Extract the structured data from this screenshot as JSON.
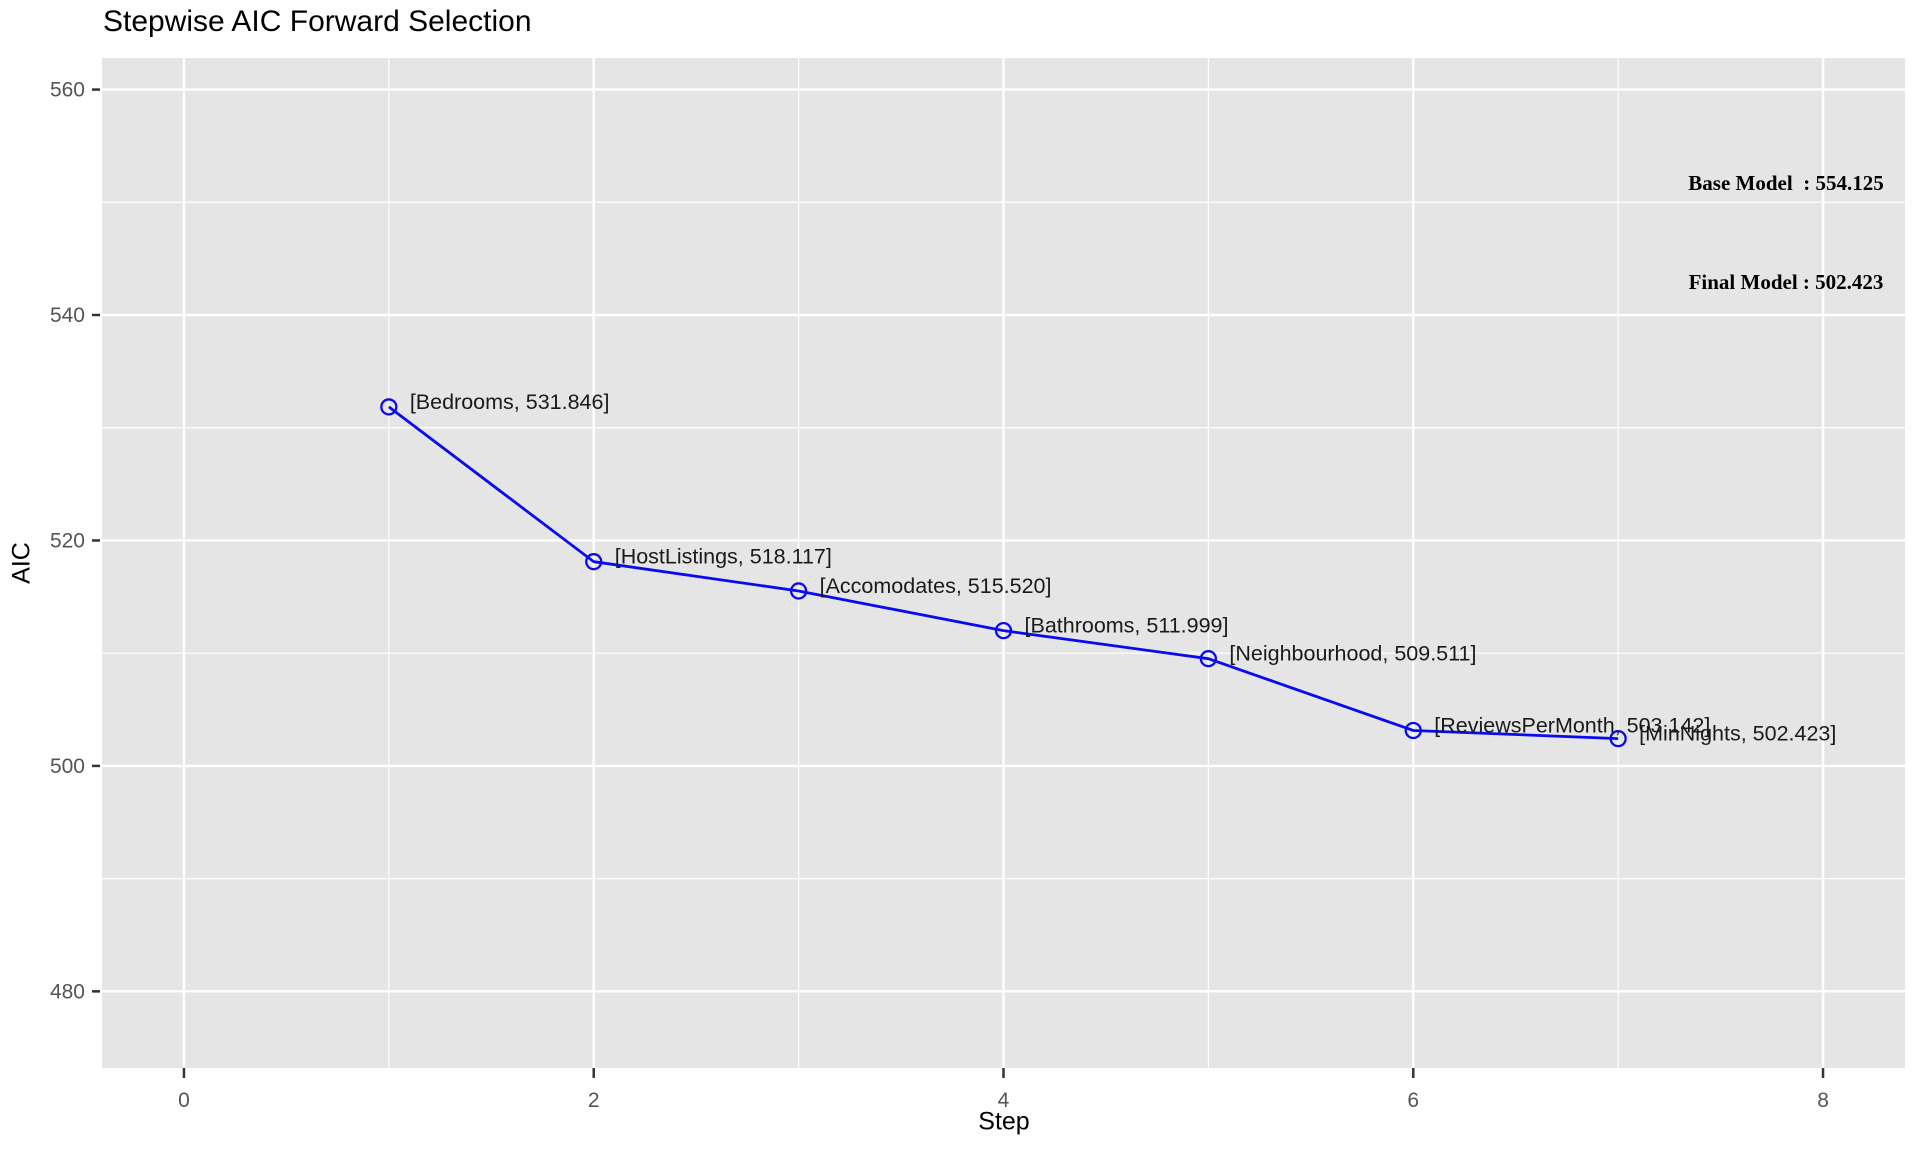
{
  "page": {
    "background": "#ffffff"
  },
  "chart_data": {
    "type": "line",
    "title": "Stepwise AIC Forward Selection",
    "xlabel": "Step",
    "ylabel": "AIC",
    "x": [
      1,
      2,
      3,
      4,
      5,
      6,
      7
    ],
    "y": [
      531.846,
      518.117,
      515.52,
      511.999,
      509.511,
      503.142,
      502.423
    ],
    "point_labels": [
      "[Bedrooms, 531.846]",
      "[HostListings, 518.117]",
      "[Accomodates, 515.520]",
      "[Bathrooms, 511.999]",
      "[Neighbourhood, 509.511]",
      "[ReviewsPerMonth, 503.142]",
      "[MinNights, 502.423]"
    ],
    "x_ticks": [
      0,
      2,
      4,
      6,
      8
    ],
    "x_minor_ticks": [
      1,
      3,
      5,
      7
    ],
    "y_ticks": [
      560,
      540,
      520,
      500,
      480
    ],
    "y_minor_ticks": [
      550,
      530,
      510,
      490
    ],
    "xlim": [
      -0.4,
      8.4
    ],
    "ylim": [
      473.2,
      562.8
    ],
    "grid": true,
    "legend_position": "none",
    "annotations": [
      {
        "text": "Base Model  : 554.125"
      },
      {
        "text": "Final Model : 502.423"
      }
    ],
    "colors": {
      "line": "#0a0af0",
      "panel_bg": "#e5e5e5",
      "grid": "#ffffff",
      "tick_label": "#555555",
      "tick_mark": "#333333",
      "point_label": "#1a1a1a"
    }
  }
}
